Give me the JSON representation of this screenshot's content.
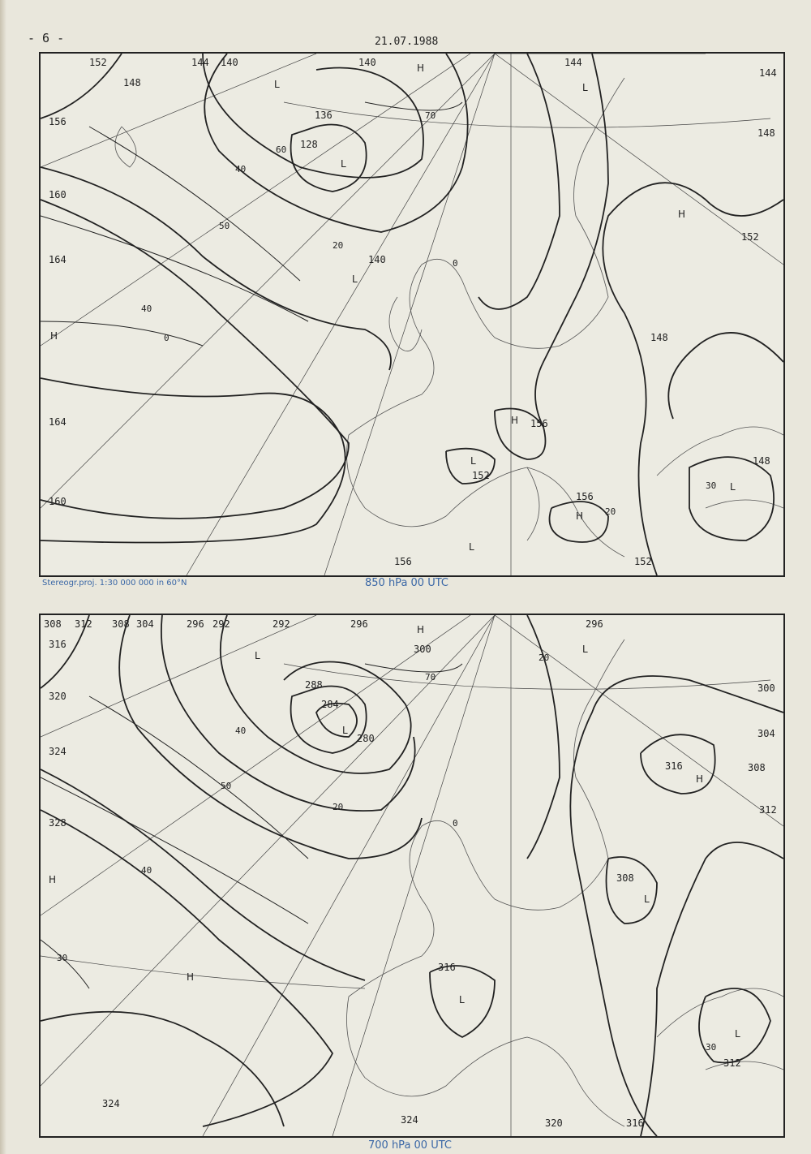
{
  "header": {
    "page_number": "- 6 -",
    "date": "21.07.1988"
  },
  "map_850": {
    "caption": "850 hPa 00 UTC",
    "projection_note": "Stereogr.proj. 1:30 000 000 in 60°N",
    "height_labels": [
      "152",
      "144",
      "140",
      "140",
      "144",
      "144",
      "148",
      "136",
      "128",
      "156",
      "160",
      "164",
      "164",
      "160",
      "148",
      "152",
      "148",
      "156",
      "152",
      "156",
      "156",
      "152",
      "140",
      "148"
    ],
    "isotach_labels": [
      "60",
      "40",
      "50",
      "20",
      "40",
      "0",
      "70",
      "0",
      "20",
      "30"
    ],
    "centers": [
      "L",
      "L",
      "L",
      "H",
      "H",
      "H",
      "L",
      "H",
      "L",
      "L",
      "H",
      "L"
    ]
  },
  "map_700": {
    "caption": "700 hPa 00 UTC",
    "height_labels": [
      "312",
      "308",
      "304",
      "296",
      "292",
      "292",
      "296",
      "300",
      "296",
      "316",
      "320",
      "324",
      "328",
      "288",
      "284",
      "280",
      "316",
      "308",
      "308",
      "316",
      "312",
      "320",
      "316",
      "324",
      "324",
      "312",
      "300",
      "304",
      "308"
    ],
    "isotach_labels": [
      "40",
      "50",
      "20",
      "40",
      "70",
      "0",
      "30",
      "30",
      "20"
    ],
    "centers": [
      "L",
      "L",
      "H",
      "H",
      "L",
      "L",
      "L",
      "H",
      "H",
      "L"
    ]
  }
}
